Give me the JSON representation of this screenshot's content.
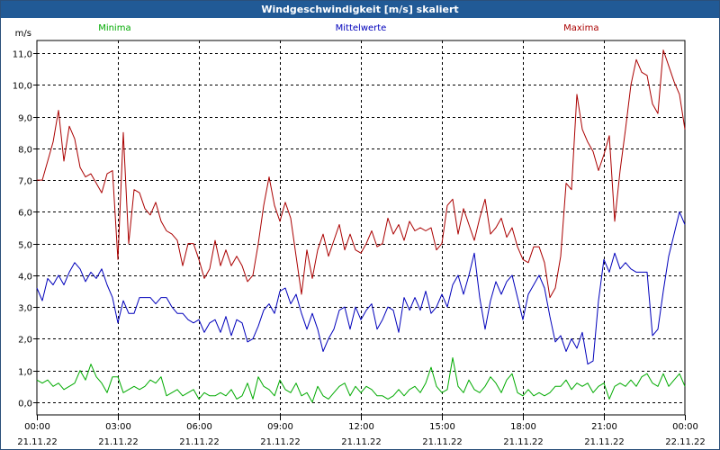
{
  "chart_data": {
    "type": "line",
    "title": "Windgeschwindigkeit [m/s] skaliert",
    "ylabel": "m/s",
    "xlabel": "",
    "ylim": [
      -0.4,
      11.4
    ],
    "yticks": [
      "11,0",
      "10,0",
      "9,0",
      "8,0",
      "7,0",
      "6,0",
      "5,0",
      "4,0",
      "3,0",
      "2,0",
      "1,0",
      "0,0"
    ],
    "ytick_values": [
      11,
      10,
      9,
      8,
      7,
      6,
      5,
      4,
      3,
      2,
      1,
      0
    ],
    "xlim": [
      0,
      24
    ],
    "xticks": [
      {
        "hour": 0,
        "time": "00:00",
        "date": "21.11.22"
      },
      {
        "hour": 3,
        "time": "03:00",
        "date": "21.11.22"
      },
      {
        "hour": 6,
        "time": "06:00",
        "date": "21.11.22"
      },
      {
        "hour": 9,
        "time": "09:00",
        "date": "21.11.22"
      },
      {
        "hour": 12,
        "time": "12:00",
        "date": "21.11.22"
      },
      {
        "hour": 15,
        "time": "15:00",
        "date": "21.11.22"
      },
      {
        "hour": 18,
        "time": "18:00",
        "date": "21.11.22"
      },
      {
        "hour": 21,
        "time": "21:00",
        "date": "21.11.22"
      },
      {
        "hour": 24,
        "time": "00:00",
        "date": "22.11.22"
      }
    ],
    "grid": true,
    "legend_placement": "top",
    "series": [
      {
        "name": "Minima",
        "color": "#00aa00",
        "x": [
          0.0,
          0.2,
          0.4,
          0.6,
          0.8,
          1.0,
          1.2,
          1.4,
          1.6,
          1.8,
          2.0,
          2.2,
          2.4,
          2.6,
          2.8,
          3.0,
          3.2,
          3.4,
          3.6,
          3.8,
          4.0,
          4.2,
          4.4,
          4.6,
          4.8,
          5.0,
          5.2,
          5.4,
          5.6,
          5.8,
          6.0,
          6.2,
          6.4,
          6.6,
          6.8,
          7.0,
          7.2,
          7.4,
          7.6,
          7.8,
          8.0,
          8.2,
          8.4,
          8.6,
          8.8,
          9.0,
          9.2,
          9.4,
          9.6,
          9.8,
          10.0,
          10.2,
          10.4,
          10.6,
          10.8,
          11.0,
          11.2,
          11.4,
          11.6,
          11.8,
          12.0,
          12.2,
          12.4,
          12.6,
          12.8,
          13.0,
          13.2,
          13.4,
          13.6,
          13.8,
          14.0,
          14.2,
          14.4,
          14.6,
          14.8,
          15.0,
          15.2,
          15.4,
          15.6,
          15.8,
          16.0,
          16.2,
          16.4,
          16.6,
          16.8,
          17.0,
          17.2,
          17.4,
          17.6,
          17.8,
          18.0,
          18.2,
          18.4,
          18.6,
          18.8,
          19.0,
          19.2,
          19.4,
          19.6,
          19.8,
          20.0,
          20.2,
          20.4,
          20.6,
          20.8,
          21.0,
          21.2,
          21.4,
          21.6,
          21.8,
          22.0,
          22.2,
          22.4,
          22.6,
          22.8,
          23.0,
          23.2,
          23.4,
          23.6,
          23.8,
          24.0
        ],
        "values": [
          0.7,
          0.6,
          0.7,
          0.5,
          0.6,
          0.4,
          0.5,
          0.6,
          1.0,
          0.7,
          1.2,
          0.8,
          0.6,
          0.3,
          0.8,
          0.8,
          0.3,
          0.4,
          0.5,
          0.4,
          0.5,
          0.7,
          0.6,
          0.8,
          0.2,
          0.3,
          0.4,
          0.2,
          0.3,
          0.4,
          0.1,
          0.3,
          0.2,
          0.2,
          0.3,
          0.2,
          0.4,
          0.1,
          0.2,
          0.6,
          0.1,
          0.8,
          0.5,
          0.4,
          0.2,
          0.7,
          0.4,
          0.3,
          0.6,
          0.2,
          0.3,
          0.0,
          0.5,
          0.2,
          0.1,
          0.3,
          0.5,
          0.6,
          0.2,
          0.5,
          0.3,
          0.5,
          0.4,
          0.2,
          0.2,
          0.1,
          0.2,
          0.4,
          0.2,
          0.4,
          0.5,
          0.3,
          0.6,
          1.1,
          0.5,
          0.3,
          0.4,
          1.4,
          0.5,
          0.3,
          0.7,
          0.4,
          0.3,
          0.5,
          0.8,
          0.6,
          0.3,
          0.7,
          0.9,
          0.3,
          0.2,
          0.4,
          0.2,
          0.3,
          0.2,
          0.3,
          0.5,
          0.5,
          0.7,
          0.4,
          0.6,
          0.5,
          0.6,
          0.3,
          0.5,
          0.6,
          0.1,
          0.5,
          0.6,
          0.5,
          0.7,
          0.5,
          0.8,
          0.9,
          0.6,
          0.5,
          0.9,
          0.5,
          0.7,
          0.9,
          0.5
        ]
      },
      {
        "name": "Mittelwerte",
        "color": "#0000bb",
        "x": [
          0.0,
          0.2,
          0.4,
          0.6,
          0.8,
          1.0,
          1.2,
          1.4,
          1.6,
          1.8,
          2.0,
          2.2,
          2.4,
          2.6,
          2.8,
          3.0,
          3.2,
          3.4,
          3.6,
          3.8,
          4.0,
          4.2,
          4.4,
          4.6,
          4.8,
          5.0,
          5.2,
          5.4,
          5.6,
          5.8,
          6.0,
          6.2,
          6.4,
          6.6,
          6.8,
          7.0,
          7.2,
          7.4,
          7.6,
          7.8,
          8.0,
          8.2,
          8.4,
          8.6,
          8.8,
          9.0,
          9.2,
          9.4,
          9.6,
          9.8,
          10.0,
          10.2,
          10.4,
          10.6,
          10.8,
          11.0,
          11.2,
          11.4,
          11.6,
          11.8,
          12.0,
          12.2,
          12.4,
          12.6,
          12.8,
          13.0,
          13.2,
          13.4,
          13.6,
          13.8,
          14.0,
          14.2,
          14.4,
          14.6,
          14.8,
          15.0,
          15.2,
          15.4,
          15.6,
          15.8,
          16.0,
          16.2,
          16.4,
          16.6,
          16.8,
          17.0,
          17.2,
          17.4,
          17.6,
          17.8,
          18.0,
          18.2,
          18.4,
          18.6,
          18.8,
          19.0,
          19.2,
          19.4,
          19.6,
          19.8,
          20.0,
          20.2,
          20.4,
          20.6,
          20.8,
          21.0,
          21.2,
          21.4,
          21.6,
          21.8,
          22.0,
          22.2,
          22.4,
          22.6,
          22.8,
          23.0,
          23.2,
          23.4,
          23.6,
          23.8,
          24.0
        ],
        "values": [
          3.6,
          3.2,
          3.9,
          3.7,
          4.0,
          3.7,
          4.1,
          4.4,
          4.2,
          3.8,
          4.1,
          3.9,
          4.2,
          3.7,
          3.3,
          2.5,
          3.2,
          2.8,
          2.8,
          3.3,
          3.3,
          3.3,
          3.1,
          3.3,
          3.3,
          3.0,
          2.8,
          2.8,
          2.6,
          2.5,
          2.6,
          2.2,
          2.5,
          2.6,
          2.2,
          2.7,
          2.1,
          2.6,
          2.5,
          1.9,
          2.0,
          2.4,
          2.9,
          3.1,
          2.8,
          3.5,
          3.6,
          3.1,
          3.4,
          2.8,
          2.3,
          2.8,
          2.3,
          1.6,
          2.0,
          2.3,
          2.9,
          3.0,
          2.3,
          3.0,
          2.6,
          2.9,
          3.1,
          2.3,
          2.6,
          3.0,
          2.9,
          2.2,
          3.3,
          2.9,
          3.3,
          2.9,
          3.5,
          2.8,
          3.0,
          3.4,
          3.0,
          3.7,
          4.0,
          3.4,
          4.0,
          4.7,
          3.3,
          2.3,
          3.2,
          3.8,
          3.4,
          3.8,
          4.0,
          3.3,
          2.6,
          3.4,
          3.7,
          4.0,
          3.6,
          2.7,
          1.9,
          2.1,
          1.6,
          2.0,
          1.7,
          2.2,
          1.2,
          1.3,
          3.2,
          4.5,
          4.1,
          4.7,
          4.2,
          4.4,
          4.2,
          4.1,
          4.1,
          4.1,
          2.1,
          2.3,
          3.5,
          4.6,
          5.3,
          6.0,
          5.6
        ]
      },
      {
        "name": "Maxima",
        "color": "#aa0000",
        "x": [
          0.0,
          0.2,
          0.4,
          0.6,
          0.8,
          1.0,
          1.2,
          1.4,
          1.6,
          1.8,
          2.0,
          2.2,
          2.4,
          2.6,
          2.8,
          3.0,
          3.2,
          3.4,
          3.6,
          3.8,
          4.0,
          4.2,
          4.4,
          4.6,
          4.8,
          5.0,
          5.2,
          5.4,
          5.6,
          5.8,
          6.0,
          6.2,
          6.4,
          6.6,
          6.8,
          7.0,
          7.2,
          7.4,
          7.6,
          7.8,
          8.0,
          8.2,
          8.4,
          8.6,
          8.8,
          9.0,
          9.2,
          9.4,
          9.6,
          9.8,
          10.0,
          10.2,
          10.4,
          10.6,
          10.8,
          11.0,
          11.2,
          11.4,
          11.6,
          11.8,
          12.0,
          12.2,
          12.4,
          12.6,
          12.8,
          13.0,
          13.2,
          13.4,
          13.6,
          13.8,
          14.0,
          14.2,
          14.4,
          14.6,
          14.8,
          15.0,
          15.2,
          15.4,
          15.6,
          15.8,
          16.0,
          16.2,
          16.4,
          16.6,
          16.8,
          17.0,
          17.2,
          17.4,
          17.6,
          17.8,
          18.0,
          18.2,
          18.4,
          18.6,
          18.8,
          19.0,
          19.2,
          19.4,
          19.6,
          19.8,
          20.0,
          20.2,
          20.4,
          20.6,
          20.8,
          21.0,
          21.2,
          21.4,
          21.6,
          21.8,
          22.0,
          22.2,
          22.4,
          22.6,
          22.8,
          23.0,
          23.2,
          23.4,
          23.6,
          23.8,
          24.0
        ],
        "values": [
          7.0,
          7.0,
          7.6,
          8.2,
          9.2,
          7.6,
          8.7,
          8.3,
          7.4,
          7.1,
          7.2,
          6.9,
          6.6,
          7.2,
          7.3,
          4.5,
          8.5,
          5.0,
          6.7,
          6.6,
          6.1,
          5.9,
          6.3,
          5.7,
          5.4,
          5.3,
          5.1,
          4.3,
          5.0,
          5.0,
          4.5,
          3.9,
          4.2,
          5.1,
          4.3,
          4.8,
          4.3,
          4.6,
          4.3,
          3.8,
          4.0,
          5.0,
          6.2,
          7.1,
          6.2,
          5.7,
          6.3,
          5.8,
          4.6,
          3.4,
          4.8,
          3.9,
          4.8,
          5.3,
          4.6,
          5.1,
          5.6,
          4.8,
          5.3,
          4.8,
          4.7,
          5.0,
          5.4,
          4.9,
          5.0,
          5.8,
          5.3,
          5.6,
          5.1,
          5.7,
          5.4,
          5.5,
          5.4,
          5.5,
          4.8,
          5.0,
          6.2,
          6.4,
          5.3,
          6.1,
          5.6,
          5.1,
          5.8,
          6.4,
          5.3,
          5.5,
          5.8,
          5.2,
          5.5,
          4.9,
          4.5,
          4.4,
          4.9,
          4.9,
          4.4,
          3.3,
          3.6,
          4.6,
          6.9,
          6.7,
          9.7,
          8.6,
          8.2,
          7.9,
          7.3,
          7.8,
          8.4,
          5.7,
          7.3,
          8.6,
          10.0,
          10.8,
          10.4,
          10.3,
          9.4,
          9.1,
          11.1,
          10.6,
          10.1,
          9.7,
          8.6
        ]
      }
    ]
  }
}
